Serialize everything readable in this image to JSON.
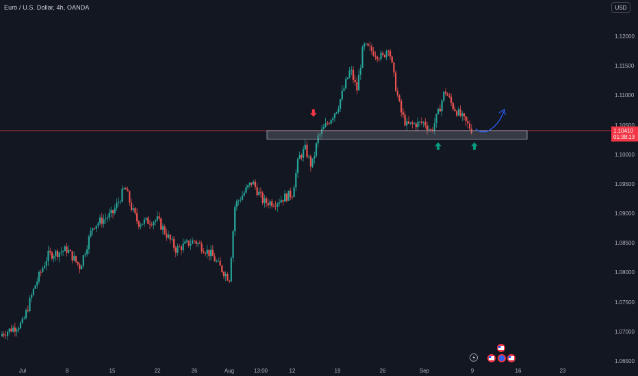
{
  "header": {
    "symbol": "Euro / U.S. Dollar, 4h, OANDA",
    "currency_button": "USD"
  },
  "price_label": {
    "price": "1.10410",
    "countdown": "01:38:13"
  },
  "colors": {
    "background": "#131722",
    "up_candle": "#26a69a",
    "down_candle": "#ef5350",
    "price_line": "#f23645",
    "support_zone": "#787b86",
    "arrow_down": "#f23645",
    "arrow_up": "#089981",
    "projection_curve": "#2962ff"
  },
  "chart_data": {
    "type": "candlestick",
    "title": "Euro / U.S. Dollar, 4h, OANDA",
    "xlabel": "",
    "ylabel": "",
    "x_tick_labels": [
      "Jul",
      "8",
      "15",
      "22",
      "26",
      "Aug",
      "13:00",
      "12",
      "19",
      "26",
      "Sep",
      "9",
      "16",
      "23"
    ],
    "y_tick_labels": [
      "1.12000",
      "1.11500",
      "1.11000",
      "1.10500",
      "1.10000",
      "1.09500",
      "1.09000",
      "1.08500",
      "1.08000",
      "1.07500",
      "1.07000",
      "1.06500"
    ],
    "ylim": [
      1.0625,
      1.1225
    ],
    "current_price": 1.1041,
    "support_zone": [
      1.1029,
      1.1039
    ],
    "grid": false,
    "price_path": [
      {
        "date": "2024-07-01",
        "close": 1.0715
      },
      {
        "date": "2024-07-03",
        "close": 1.078
      },
      {
        "date": "2024-07-05",
        "close": 1.083
      },
      {
        "date": "2024-07-08",
        "close": 1.084
      },
      {
        "date": "2024-07-10",
        "close": 1.081
      },
      {
        "date": "2024-07-12",
        "close": 1.088
      },
      {
        "date": "2024-07-15",
        "close": 1.09
      },
      {
        "date": "2024-07-17",
        "close": 1.0945
      },
      {
        "date": "2024-07-18",
        "close": 1.091
      },
      {
        "date": "2024-07-19",
        "close": 1.0885
      },
      {
        "date": "2024-07-22",
        "close": 1.089
      },
      {
        "date": "2024-07-24",
        "close": 1.084
      },
      {
        "date": "2024-07-26",
        "close": 1.0855
      },
      {
        "date": "2024-07-29",
        "close": 1.083
      },
      {
        "date": "2024-07-30",
        "close": 1.0815
      },
      {
        "date": "2024-08-01",
        "close": 1.079
      },
      {
        "date": "2024-08-02",
        "close": 1.0915
      },
      {
        "date": "2024-08-05",
        "close": 1.0955
      },
      {
        "date": "2024-08-07",
        "close": 1.092
      },
      {
        "date": "2024-08-09",
        "close": 1.092
      },
      {
        "date": "2024-08-12",
        "close": 1.0935
      },
      {
        "date": "2024-08-13",
        "close": 1.0995
      },
      {
        "date": "2024-08-14",
        "close": 1.101
      },
      {
        "date": "2024-08-15",
        "close": 1.098
      },
      {
        "date": "2024-08-16",
        "close": 1.103
      },
      {
        "date": "2024-08-19",
        "close": 1.108
      },
      {
        "date": "2024-08-21",
        "close": 1.1145
      },
      {
        "date": "2024-08-22",
        "close": 1.111
      },
      {
        "date": "2024-08-23",
        "close": 1.1185
      },
      {
        "date": "2024-08-26",
        "close": 1.1165
      },
      {
        "date": "2024-08-27",
        "close": 1.1185
      },
      {
        "date": "2024-08-28",
        "close": 1.1125
      },
      {
        "date": "2024-08-29",
        "close": 1.1075
      },
      {
        "date": "2024-08-30",
        "close": 1.105
      },
      {
        "date": "2024-09-02",
        "close": 1.1055
      },
      {
        "date": "2024-09-03",
        "close": 1.104
      },
      {
        "date": "2024-09-04",
        "close": 1.107
      },
      {
        "date": "2024-09-05",
        "close": 1.111
      },
      {
        "date": "2024-09-06",
        "close": 1.1085
      },
      {
        "date": "2024-09-09",
        "close": 1.1041
      }
    ]
  },
  "annotations": {
    "down_arrow_date": "2024-08-14",
    "up_arrow_dates": [
      "2024-09-03",
      "2024-09-09"
    ]
  },
  "events": {
    "icons": [
      "lightning-icon",
      "us-flag-icon",
      "us-flag-icon",
      "eu-flag-icon",
      "us-flag-icon"
    ]
  }
}
